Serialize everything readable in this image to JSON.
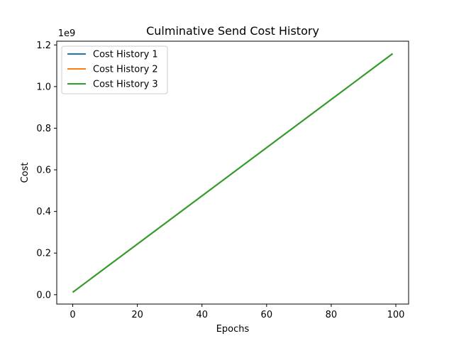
{
  "chart_data": {
    "type": "line",
    "title": "Culminative Send Cost History",
    "xlabel": "Epochs",
    "ylabel": "Cost",
    "y_offset_text": "1e9",
    "y_multiplier": 1000000000,
    "xlim": [
      -4.95,
      103.95
    ],
    "ylim": [
      -0.045,
      1.218
    ],
    "x_ticks": [
      0,
      20,
      40,
      60,
      80,
      100
    ],
    "y_ticks": [
      0.0,
      0.2,
      0.4,
      0.6,
      0.8,
      1.0,
      1.2
    ],
    "y_tick_labels": [
      "0.0",
      "0.2",
      "0.4",
      "0.6",
      "0.8",
      "1.0",
      "1.2"
    ],
    "grid": false,
    "legend_position": "top-left",
    "series": [
      {
        "name": "Cost History 1",
        "color": "#1f77b4",
        "x": [
          0,
          99
        ],
        "y": [
          0.0117,
          1.158
        ]
      },
      {
        "name": "Cost History 2",
        "color": "#ff7f0e",
        "x": [
          0,
          99
        ],
        "y": [
          0.0117,
          1.158
        ]
      },
      {
        "name": "Cost History 3",
        "color": "#2ca02c",
        "x": [
          0,
          99
        ],
        "y": [
          0.0117,
          1.158
        ]
      }
    ]
  }
}
